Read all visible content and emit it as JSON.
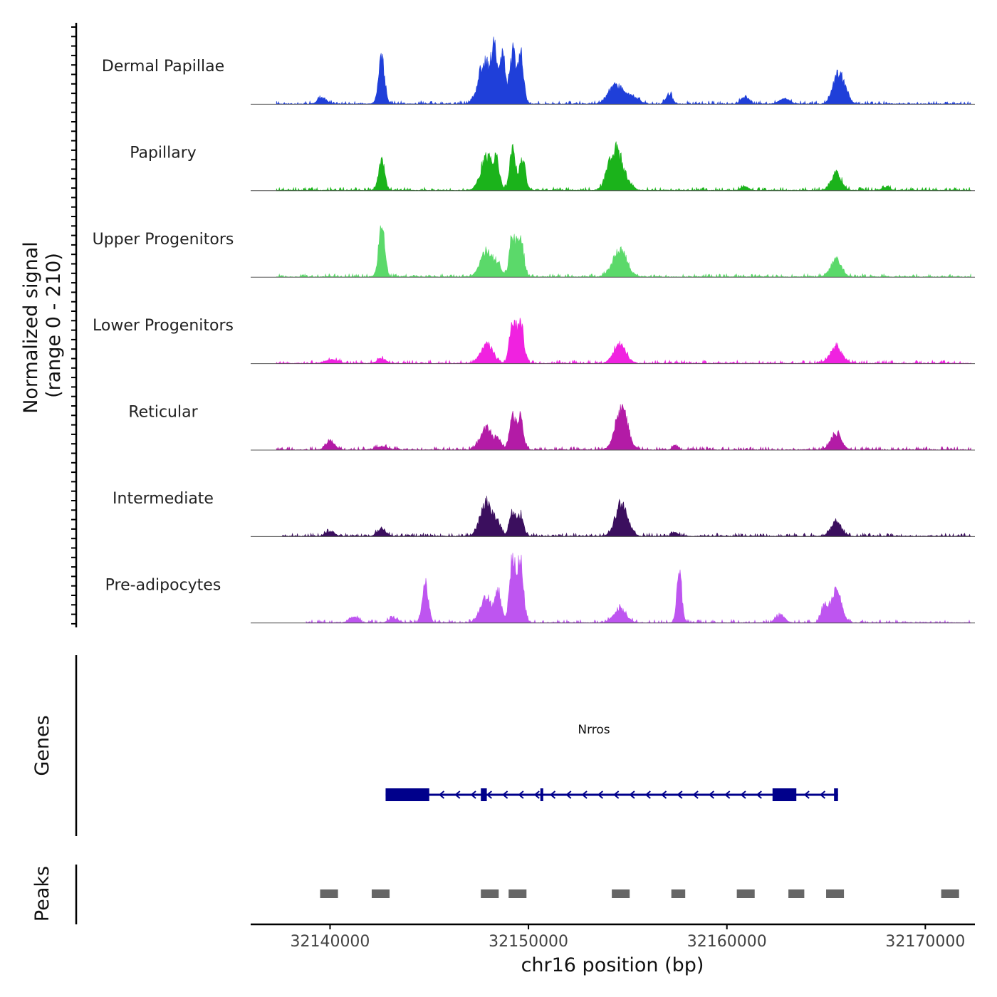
{
  "chart_data": {
    "type": "area",
    "title": "",
    "ylabel": "Normalized signal",
    "ylabel_range": "(range 0 - 210)",
    "ylim": [
      0,
      210
    ],
    "xlabel": "chr16 position (bp)",
    "xlim": [
      32136000,
      32172500
    ],
    "x_ticks": [
      32140000,
      32150000,
      32160000,
      32170000
    ],
    "x_tick_labels": [
      "32140000",
      "32150000",
      "32160000",
      "32170000"
    ],
    "tracks": [
      {
        "name": "Dermal Papillae",
        "color": "#1F3FD9",
        "data_start": 32137300,
        "data_end": 32172300,
        "peaks": [
          [
            32139600,
            20,
            200
          ],
          [
            32142600,
            140,
            150
          ],
          [
            32147800,
            140,
            300
          ],
          [
            32148300,
            185,
            120
          ],
          [
            32148700,
            180,
            120
          ],
          [
            32149200,
            160,
            150
          ],
          [
            32149600,
            155,
            150
          ],
          [
            32154400,
            60,
            350
          ],
          [
            32155200,
            25,
            300
          ],
          [
            32157100,
            30,
            150
          ],
          [
            32160900,
            22,
            180
          ],
          [
            32162900,
            15,
            250
          ],
          [
            32165600,
            95,
            250
          ],
          [
            32166000,
            30,
            180
          ]
        ]
      },
      {
        "name": "Papillary",
        "color": "#1BB31B",
        "data_start": 32137300,
        "data_end": 32172300,
        "peaks": [
          [
            32142600,
            105,
            150
          ],
          [
            32147900,
            105,
            300
          ],
          [
            32148400,
            80,
            150
          ],
          [
            32149200,
            125,
            150
          ],
          [
            32149700,
            105,
            150
          ],
          [
            32154300,
            125,
            300
          ],
          [
            32154800,
            40,
            300
          ],
          [
            32160900,
            10,
            180
          ],
          [
            32165500,
            55,
            250
          ],
          [
            32168000,
            8,
            200
          ]
        ]
      },
      {
        "name": "Upper Progenitors",
        "color": "#5BD96A",
        "data_start": 32137300,
        "data_end": 32172300,
        "peaks": [
          [
            32142600,
            160,
            150
          ],
          [
            32147900,
            85,
            300
          ],
          [
            32148500,
            35,
            150
          ],
          [
            32149200,
            130,
            150
          ],
          [
            32149600,
            130,
            150
          ],
          [
            32154600,
            85,
            350
          ],
          [
            32165500,
            60,
            250
          ]
        ]
      },
      {
        "name": "Lower Progenitors",
        "color": "#F022E0",
        "data_start": 32137300,
        "data_end": 32172300,
        "peaks": [
          [
            32142600,
            15,
            200
          ],
          [
            32147900,
            60,
            300
          ],
          [
            32149200,
            140,
            150
          ],
          [
            32149600,
            140,
            150
          ],
          [
            32154600,
            60,
            300
          ],
          [
            32165500,
            50,
            300
          ],
          [
            32140100,
            10,
            300
          ]
        ]
      },
      {
        "name": "Reticular",
        "color": "#B31BA6",
        "data_start": 32137300,
        "data_end": 32172300,
        "peaks": [
          [
            32140000,
            30,
            200
          ],
          [
            32147900,
            70,
            300
          ],
          [
            32148500,
            25,
            150
          ],
          [
            32149200,
            105,
            150
          ],
          [
            32149600,
            100,
            150
          ],
          [
            32154700,
            135,
            300
          ],
          [
            32157400,
            15,
            120
          ],
          [
            32165500,
            55,
            250
          ],
          [
            32142600,
            8,
            300
          ]
        ]
      },
      {
        "name": "Intermediate",
        "color": "#3B0F5E",
        "data_start": 32137600,
        "data_end": 32172300,
        "peaks": [
          [
            32140000,
            15,
            200
          ],
          [
            32142600,
            25,
            200
          ],
          [
            32147900,
            110,
            300
          ],
          [
            32148500,
            30,
            150
          ],
          [
            32149200,
            80,
            150
          ],
          [
            32149600,
            70,
            150
          ],
          [
            32154700,
            100,
            300
          ],
          [
            32157400,
            10,
            150
          ],
          [
            32165500,
            45,
            250
          ]
        ]
      },
      {
        "name": "Pre-adipocytes",
        "color": "#BE55F0",
        "data_start": 32138800,
        "data_end": 32172300,
        "peaks": [
          [
            32144800,
            125,
            150
          ],
          [
            32147900,
            80,
            300
          ],
          [
            32148500,
            90,
            150
          ],
          [
            32149200,
            200,
            150
          ],
          [
            32149600,
            200,
            150
          ],
          [
            32154600,
            45,
            300
          ],
          [
            32157600,
            175,
            120
          ],
          [
            32165500,
            110,
            250
          ],
          [
            32164900,
            50,
            150
          ],
          [
            32162700,
            25,
            200
          ],
          [
            32141200,
            20,
            200
          ],
          [
            32143200,
            15,
            200
          ]
        ]
      }
    ],
    "genes": [
      {
        "name": "Nrros",
        "strand": "-",
        "start": 32142800,
        "end": 32165600,
        "exons": [
          [
            32142800,
            32145000
          ],
          [
            32147600,
            32147900
          ],
          [
            32150600,
            32150700
          ],
          [
            32162300,
            32163500
          ],
          [
            32165400,
            32165600
          ]
        ]
      }
    ],
    "peaks_track": {
      "label": "Peaks",
      "regions": [
        [
          32139500,
          32140400
        ],
        [
          32142100,
          32143000
        ],
        [
          32147600,
          32148500
        ],
        [
          32149000,
          32149900
        ],
        [
          32154200,
          32155100
        ],
        [
          32157200,
          32157900
        ],
        [
          32160500,
          32161400
        ],
        [
          32163100,
          32163900
        ],
        [
          32165000,
          32165900
        ],
        [
          32170800,
          32171700
        ]
      ]
    },
    "genes_track_label": "Genes"
  }
}
